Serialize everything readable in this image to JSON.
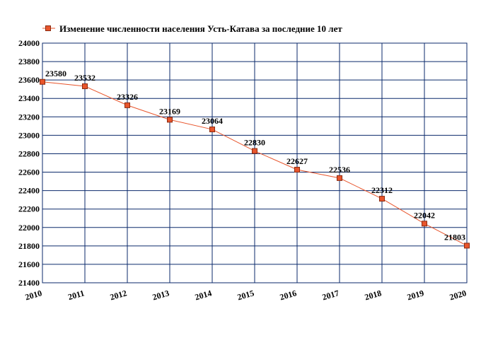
{
  "chart_data": {
    "type": "line",
    "title": "",
    "xlabel": "",
    "ylabel": "",
    "x": [
      "2010",
      "2011",
      "2012",
      "2013",
      "2014",
      "2015",
      "2016",
      "2017",
      "2018",
      "2019",
      "2020"
    ],
    "series": [
      {
        "name": "Изменение численности населения Усть-Катава за последние 10 лет",
        "values": [
          23580,
          23532,
          23326,
          23169,
          23064,
          22830,
          22627,
          22536,
          22312,
          22042,
          21803
        ],
        "color": "#e8552c",
        "marker": "square"
      }
    ],
    "data_labels": [
      "23580",
      "23532",
      "23326",
      "23169",
      "23064",
      "22830",
      "22627",
      "22536",
      "22312",
      "22042",
      "21803"
    ],
    "yticks": [
      "24000",
      "23800",
      "23600",
      "23400",
      "23200",
      "23000",
      "22800",
      "22600",
      "22400",
      "22200",
      "22000",
      "21800",
      "21600",
      "21400"
    ],
    "ylim": [
      21400,
      24000
    ],
    "grid": true,
    "grid_color": "#0b2a6b",
    "legend_position": "top-left"
  }
}
